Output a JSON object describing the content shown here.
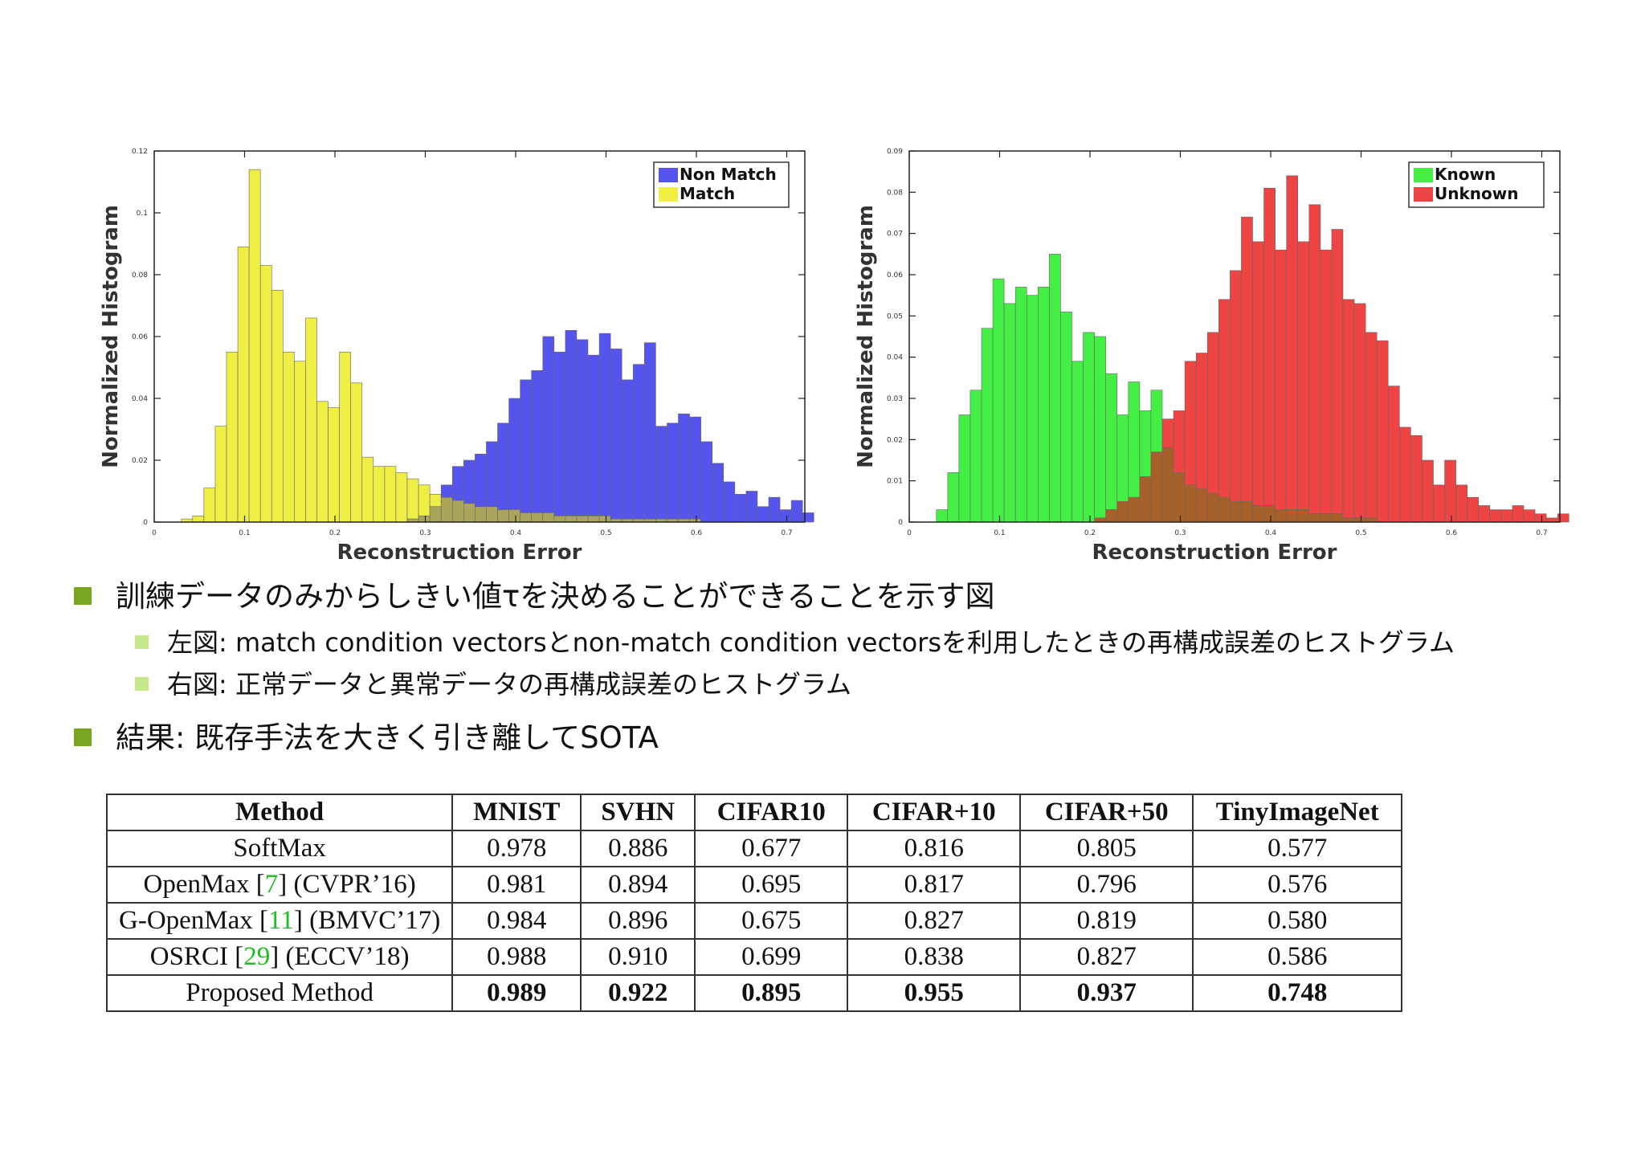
{
  "chart_data": [
    {
      "type": "bar",
      "xlabel": "Reconstruction Error",
      "ylabel": "Normalized Histogram",
      "xlim": [
        0,
        0.72
      ],
      "ylim": [
        0,
        0.12
      ],
      "xticks": [
        "0",
        "0.1",
        "0.2",
        "0.3",
        "0.4",
        "0.5",
        "0.6",
        "0.7"
      ],
      "yticks": [
        "0",
        "0.02",
        "0.04",
        "0.06",
        "0.08",
        "0.1",
        "0.12"
      ],
      "legend_position": "top-right",
      "bin_width": 0.0125,
      "x": [
        0.03,
        0.0425,
        0.055,
        0.0675,
        0.08,
        0.0925,
        0.105,
        0.1175,
        0.13,
        0.1425,
        0.155,
        0.1675,
        0.18,
        0.1925,
        0.205,
        0.2175,
        0.23,
        0.2425,
        0.255,
        0.2675,
        0.28,
        0.2925,
        0.305,
        0.3175,
        0.33,
        0.3425,
        0.355,
        0.3675,
        0.38,
        0.3925,
        0.405,
        0.4175,
        0.43,
        0.4425,
        0.455,
        0.4675,
        0.48,
        0.4925,
        0.505,
        0.5175,
        0.53,
        0.5425,
        0.555,
        0.5675,
        0.58,
        0.5925,
        0.605,
        0.6175,
        0.63,
        0.6425,
        0.655,
        0.6675,
        0.68,
        0.6925,
        0.705,
        0.7175
      ],
      "series": [
        {
          "name": "Non Match",
          "color": "#5555ee",
          "values": [
            0,
            0,
            0,
            0,
            0,
            0,
            0,
            0,
            0,
            0,
            0,
            0,
            0,
            0,
            0,
            0,
            0,
            0,
            0,
            0,
            0.001,
            0.002,
            0.005,
            0.012,
            0.018,
            0.02,
            0.022,
            0.026,
            0.032,
            0.04,
            0.046,
            0.049,
            0.06,
            0.055,
            0.062,
            0.059,
            0.054,
            0.061,
            0.056,
            0.046,
            0.051,
            0.058,
            0.031,
            0.032,
            0.035,
            0.034,
            0.026,
            0.019,
            0.013,
            0.009,
            0.01,
            0.005,
            0.008,
            0.004,
            0.007,
            0.003
          ]
        },
        {
          "name": "Match",
          "color": "#eeee44",
          "values": [
            0.001,
            0.002,
            0.011,
            0.031,
            0.055,
            0.089,
            0.114,
            0.083,
            0.075,
            0.055,
            0.052,
            0.066,
            0.039,
            0.037,
            0.055,
            0.045,
            0.021,
            0.018,
            0.018,
            0.016,
            0.014,
            0.012,
            0.009,
            0.008,
            0.007,
            0.006,
            0.005,
            0.005,
            0.004,
            0.004,
            0.003,
            0.003,
            0.003,
            0.002,
            0.002,
            0.002,
            0.002,
            0.002,
            0.001,
            0.001,
            0.001,
            0.001,
            0.001,
            0.001,
            0.001,
            0.001,
            0,
            0,
            0,
            0,
            0,
            0,
            0,
            0,
            0,
            0
          ]
        }
      ]
    },
    {
      "type": "bar",
      "xlabel": "Reconstruction Error",
      "ylabel": "Normalized Histogram",
      "xlim": [
        0,
        0.72
      ],
      "ylim": [
        0,
        0.09
      ],
      "xticks": [
        "0",
        "0.1",
        "0.2",
        "0.3",
        "0.4",
        "0.5",
        "0.6",
        "0.7"
      ],
      "yticks": [
        "0",
        "0.01",
        "0.02",
        "0.03",
        "0.04",
        "0.05",
        "0.06",
        "0.07",
        "0.08",
        "0.09"
      ],
      "legend_position": "top-right",
      "bin_width": 0.0125,
      "x": [
        0.03,
        0.0425,
        0.055,
        0.0675,
        0.08,
        0.0925,
        0.105,
        0.1175,
        0.13,
        0.1425,
        0.155,
        0.1675,
        0.18,
        0.1925,
        0.205,
        0.2175,
        0.23,
        0.2425,
        0.255,
        0.2675,
        0.28,
        0.2925,
        0.305,
        0.3175,
        0.33,
        0.3425,
        0.355,
        0.3675,
        0.38,
        0.3925,
        0.405,
        0.4175,
        0.43,
        0.4425,
        0.455,
        0.4675,
        0.48,
        0.4925,
        0.505,
        0.5175,
        0.53,
        0.5425,
        0.555,
        0.5675,
        0.58,
        0.5925,
        0.605,
        0.6175,
        0.63,
        0.6425,
        0.655,
        0.6675,
        0.68,
        0.6925,
        0.705,
        0.7175
      ],
      "series": [
        {
          "name": "Known",
          "color": "#44ee44",
          "values": [
            0.003,
            0.012,
            0.026,
            0.032,
            0.047,
            0.059,
            0.053,
            0.057,
            0.055,
            0.057,
            0.065,
            0.051,
            0.039,
            0.046,
            0.045,
            0.036,
            0.026,
            0.034,
            0.027,
            0.032,
            0.018,
            0.012,
            0.009,
            0.008,
            0.007,
            0.006,
            0.005,
            0.005,
            0.004,
            0.004,
            0.003,
            0.003,
            0.003,
            0.002,
            0.002,
            0.002,
            0.001,
            0.001,
            0.001,
            0,
            0,
            0,
            0,
            0,
            0,
            0,
            0,
            0,
            0,
            0,
            0,
            0,
            0,
            0,
            0,
            0
          ]
        },
        {
          "name": "Unknown",
          "color": "#ee4444",
          "values": [
            0,
            0,
            0,
            0,
            0,
            0,
            0,
            0,
            0,
            0,
            0,
            0,
            0,
            0,
            0.001,
            0.003,
            0.005,
            0.006,
            0.011,
            0.017,
            0.025,
            0.027,
            0.039,
            0.041,
            0.046,
            0.054,
            0.061,
            0.074,
            0.068,
            0.081,
            0.066,
            0.084,
            0.068,
            0.077,
            0.066,
            0.071,
            0.054,
            0.053,
            0.046,
            0.044,
            0.033,
            0.023,
            0.021,
            0.015,
            0.009,
            0.015,
            0.009,
            0.006,
            0.004,
            0.003,
            0.003,
            0.004,
            0.003,
            0.002,
            0.001,
            0.002
          ]
        }
      ]
    }
  ],
  "bullets": {
    "main": "訓練データのみからしきい値τを決めることができることを示す図",
    "sub_left": "左図: match condition vectorsとnon-match condition vectorsを利用したときの再構成誤差のヒストグラム",
    "sub_right": "右図: 正常データと異常データの再構成誤差のヒストグラム",
    "result": "結果: 既存手法を大きく引き離してSOTA"
  },
  "table": {
    "headers": [
      "Method",
      "MNIST",
      "SVHN",
      "CIFAR10",
      "CIFAR+10",
      "CIFAR+50",
      "TinyImageNet"
    ],
    "rows": [
      {
        "name": "SoftMax",
        "ref": "",
        "venue": "",
        "values": [
          "0.978",
          "0.886",
          "0.677",
          "0.816",
          "0.805",
          "0.577"
        ]
      },
      {
        "name": "OpenMax",
        "ref": "7",
        "venue": "(CVPR’16)",
        "values": [
          "0.981",
          "0.894",
          "0.695",
          "0.817",
          "0.796",
          "0.576"
        ]
      },
      {
        "name": "G-OpenMax",
        "ref": "11",
        "venue": "(BMVC’17)",
        "values": [
          "0.984",
          "0.896",
          "0.675",
          "0.827",
          "0.819",
          "0.580"
        ]
      },
      {
        "name": "OSRCI",
        "ref": "29",
        "venue": "(ECCV’18)",
        "values": [
          "0.988",
          "0.910",
          "0.699",
          "0.838",
          "0.827",
          "0.586"
        ]
      },
      {
        "name": "Proposed Method",
        "ref": "",
        "venue": "",
        "values": [
          "0.989",
          "0.922",
          "0.895",
          "0.955",
          "0.937",
          "0.748"
        ]
      }
    ]
  }
}
